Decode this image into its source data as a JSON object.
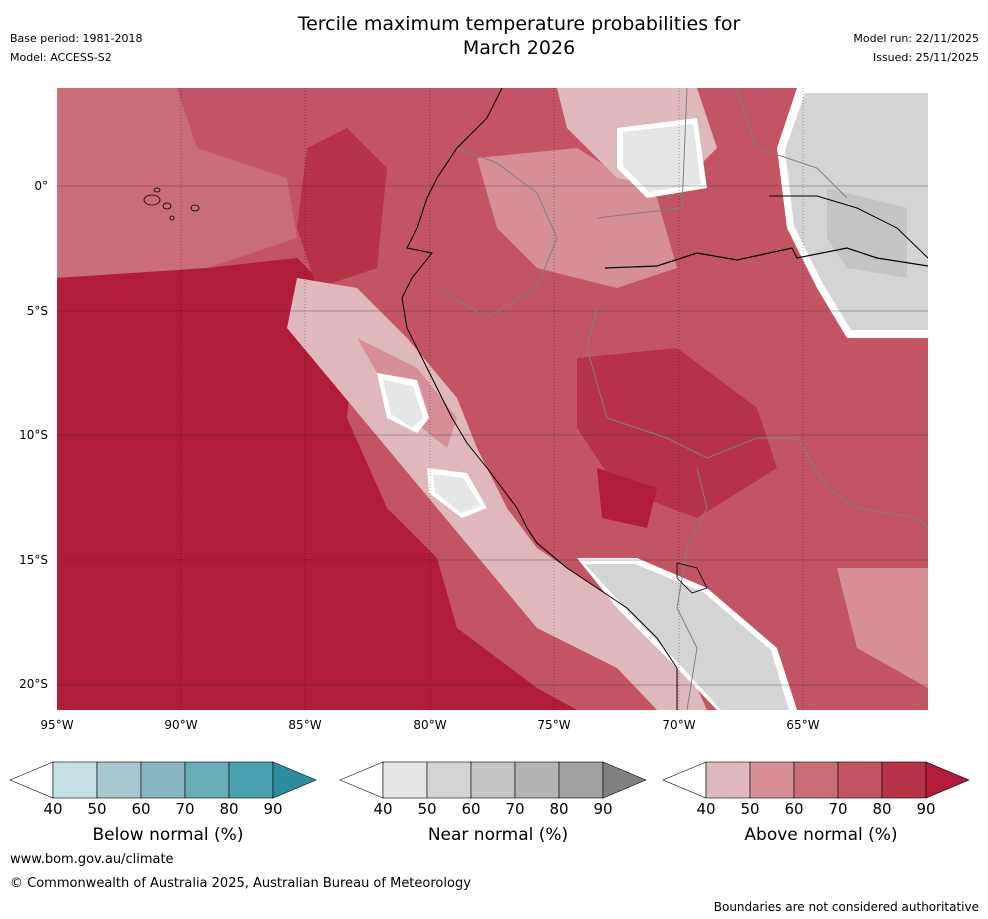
{
  "header": {
    "base_period": "Base period: 1981-2018",
    "model": "Model: ACCESS-S2",
    "title_line1": "Tercile maximum temperature probabilities for",
    "title_line2": "March 2026",
    "model_run": "Model run: 22/11/2025",
    "issued": "Issued: 25/11/2025"
  },
  "map": {
    "lat_labels": [
      "0°",
      "5°S",
      "10°S",
      "15°S",
      "20°S"
    ],
    "lon_labels": [
      "95°W",
      "90°W",
      "85°W",
      "80°W",
      "75°W",
      "70°W",
      "65°W"
    ]
  },
  "legends": [
    {
      "label": "Below normal (%)",
      "ticks": [
        "40",
        "50",
        "60",
        "70",
        "80",
        "90"
      ],
      "colors": [
        "#ffffff",
        "#c6e1e6",
        "#a6c8ce",
        "#88b6c0",
        "#6aabb6",
        "#4aa2b0",
        "#2e8ca0"
      ]
    },
    {
      "label": "Near normal (%)",
      "ticks": [
        "40",
        "50",
        "60",
        "70",
        "80",
        "90"
      ],
      "colors": [
        "#ffffff",
        "#e6e6e6",
        "#d4d4d4",
        "#c4c4c4",
        "#b4b4b4",
        "#a0a0a0",
        "#808080"
      ]
    },
    {
      "label": "Above normal (%)",
      "ticks": [
        "40",
        "50",
        "60",
        "70",
        "80",
        "90"
      ],
      "colors": [
        "#ffffff",
        "#dfb8bc",
        "#d68f97",
        "#c96e78",
        "#c35463",
        "#b63246",
        "#b11c3a"
      ]
    }
  ],
  "footer": {
    "website": "www.bom.gov.au/climate",
    "copyright": "© Commonwealth of Australia 2025, Australian Bureau of Meteorology",
    "disclaimer": "Boundaries are not considered authoritative"
  }
}
